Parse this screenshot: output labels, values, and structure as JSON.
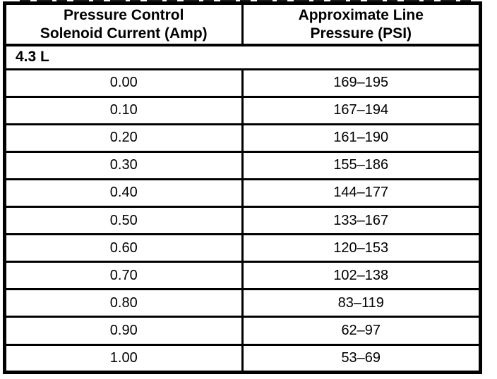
{
  "page": {
    "background_color": "#ffffff",
    "ink_color": "#000000",
    "kind": "scanned service manual table"
  },
  "table": {
    "header": {
      "current_line1": "Pressure Control",
      "current_line2": "Solenoid Current (Amp)",
      "pressure_line1": "Approximate Line",
      "pressure_line2": "Pressure (PSI)"
    },
    "engine_label": "4.3 L",
    "rows": [
      {
        "current": "0.00",
        "pressure": "169–195"
      },
      {
        "current": "0.10",
        "pressure": "167–194"
      },
      {
        "current": "0.20",
        "pressure": "161–190"
      },
      {
        "current": "0.30",
        "pressure": "155–186"
      },
      {
        "current": "0.40",
        "pressure": "144–177"
      },
      {
        "current": "0.50",
        "pressure": "133–167"
      },
      {
        "current": "0.60",
        "pressure": "120–153"
      },
      {
        "current": "0.70",
        "pressure": "102–138"
      },
      {
        "current": "0.80",
        "pressure": "83–119"
      },
      {
        "current": "0.90",
        "pressure": "62–97"
      },
      {
        "current": "1.00",
        "pressure": "53–69"
      }
    ]
  }
}
